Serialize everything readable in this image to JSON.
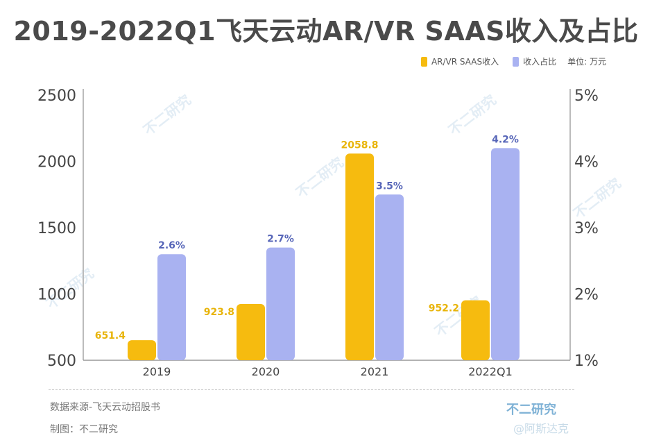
{
  "title": "2019-2022Q1飞天云动AR/VR SAAS收入及占比",
  "legend": {
    "series1": "AR/VR SAAS收入",
    "series2": "收入占比",
    "unit": "单位: 万元"
  },
  "colors": {
    "revenue": "#f6bb0f",
    "share": "#a9b2f1",
    "revenue_label": "#e8b40a",
    "share_label": "#5766b8"
  },
  "footer": {
    "source": "数据来源-飞天云动招股书",
    "made_by": "制图：不二研究",
    "brand": "不二研究",
    "brand_sub": "@阿斯达克"
  },
  "watermark": "不二研究",
  "chart_data": {
    "type": "bar",
    "categories": [
      "2019",
      "2020",
      "2021",
      "2022Q1"
    ],
    "series": [
      {
        "name": "AR/VR SAAS收入",
        "axis": "left",
        "values": [
          651.4,
          923.8,
          2058.8,
          952.2
        ],
        "labels": [
          "651.4",
          "923.8",
          "2058.8",
          "952.2"
        ]
      },
      {
        "name": "收入占比",
        "axis": "right",
        "values": [
          2.6,
          2.7,
          3.5,
          4.2
        ],
        "labels": [
          "2.6%",
          "2.7%",
          "3.5%",
          "4.2%"
        ]
      }
    ],
    "y_left": {
      "range": [
        500,
        2500
      ],
      "ticks": [
        "500",
        "1000",
        "1500",
        "2000",
        "2500"
      ]
    },
    "y_right": {
      "range": [
        1,
        5
      ],
      "ticks": [
        "1%",
        "2%",
        "3%",
        "4%",
        "5%"
      ]
    },
    "grid": false
  }
}
